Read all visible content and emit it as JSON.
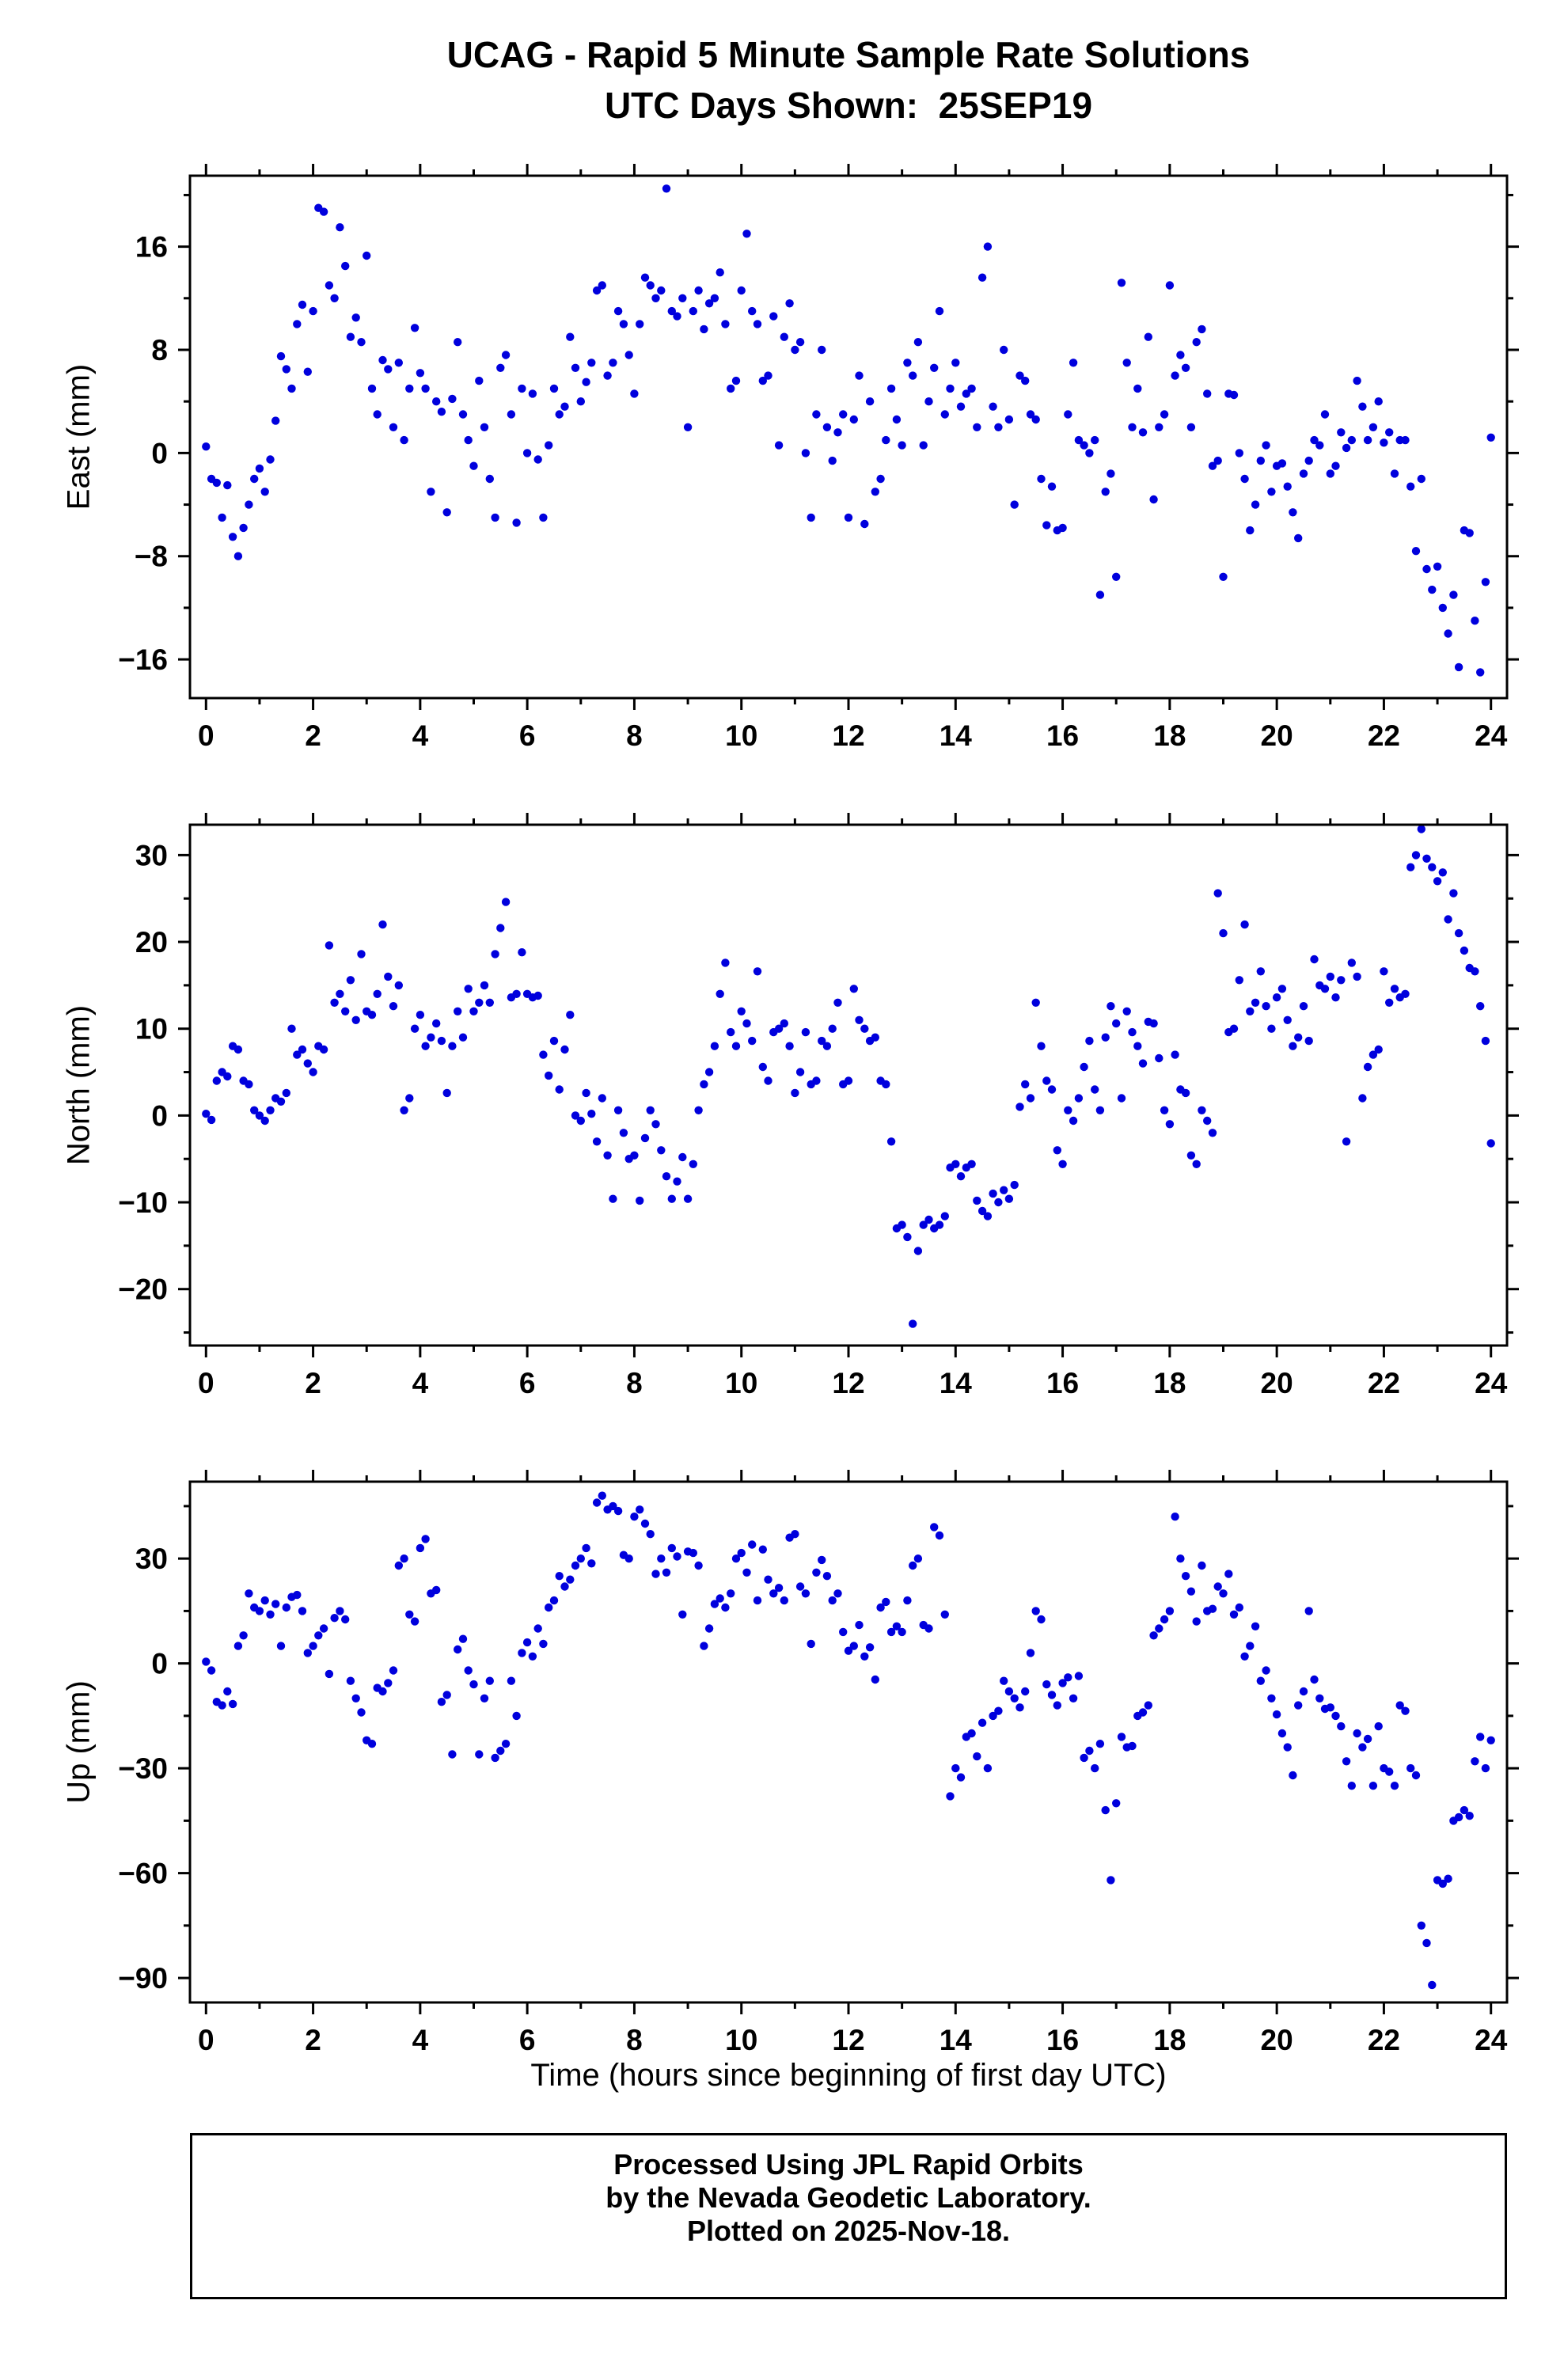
{
  "title": {
    "line1": "UCAG - Rapid 5 Minute Sample Rate Solutions",
    "line2": "UTC Days Shown:  25SEP19"
  },
  "xlabel": "Time (hours since beginning of first day UTC)",
  "footer": {
    "line1": "Processed Using JPL Rapid Orbits",
    "line2": "by the Nevada Geodetic Laboratory.",
    "line3": "Plotted on 2025-Nov-18."
  },
  "colors": {
    "point": "#0000dd",
    "frame": "#000000"
  },
  "chart_data": [
    {
      "type": "scatter",
      "name": "east",
      "title": "",
      "ylabel": "East (mm)",
      "xlabel": "",
      "xlim": [
        -0.3,
        24.3
      ],
      "ylim": [
        -19,
        21.5
      ],
      "xticks": {
        "major": [
          0,
          2,
          4,
          6,
          8,
          10,
          12,
          14,
          16,
          18,
          20,
          22,
          24
        ],
        "minor": [
          1,
          3,
          5,
          7,
          9,
          11,
          13,
          15,
          17,
          19,
          21,
          23
        ]
      },
      "yticks": {
        "major": [
          -16,
          -8,
          0,
          8,
          16
        ],
        "minor": [
          -12,
          -4,
          4,
          12,
          20
        ]
      },
      "x_start": 0,
      "x_step": 0.1,
      "y": [
        0.5,
        -2,
        -2.3,
        -5,
        -2.5,
        -6.5,
        -8,
        -5.8,
        -4,
        -2,
        -1.2,
        -3,
        -0.5,
        2.5,
        7.5,
        6.5,
        5,
        10,
        11.5,
        6.3,
        11,
        19,
        18.7,
        13,
        12,
        17.5,
        14.5,
        9,
        10.5,
        8.6,
        15.3,
        5,
        3,
        7.2,
        6.5,
        2,
        7,
        1,
        5,
        9.7,
        6.2,
        5,
        -3,
        4,
        3.2,
        -4.6,
        4.2,
        8.6,
        3,
        1,
        -1,
        5.6,
        2,
        -2,
        -5,
        6.6,
        7.6,
        3,
        -5.4,
        5,
        0,
        4.6,
        -0.5,
        -5,
        0.6,
        5,
        3,
        3.6,
        9,
        6.6,
        4,
        5.5,
        7,
        12.6,
        13,
        6,
        7,
        11,
        10,
        7.6,
        4.6,
        10,
        13.6,
        13,
        12,
        12.6,
        20.5,
        11,
        10.6,
        12,
        2,
        11,
        12.6,
        9.6,
        11.6,
        12,
        14,
        10,
        5,
        5.6,
        12.6,
        17,
        11,
        10,
        5.6,
        6,
        10.6,
        0.6,
        9,
        11.6,
        8,
        8.6,
        0,
        -5,
        3,
        8,
        2,
        -0.6,
        1.6,
        3,
        -5,
        2.6,
        6,
        -5.5,
        4,
        -3,
        -2,
        1,
        5,
        2.6,
        0.6,
        7,
        6,
        8.6,
        0.6,
        4,
        6.6,
        11,
        3,
        5,
        7,
        3.6,
        4.6,
        5,
        2,
        13.6,
        16,
        3.6,
        2,
        8,
        2.6,
        -4,
        6,
        5.6,
        3,
        2.6,
        -2,
        -5.6,
        -2.6,
        -6,
        -5.8,
        3,
        7,
        1,
        0.6,
        0,
        1,
        -11,
        -3,
        -1.6,
        -9.6,
        13.2,
        7,
        2,
        5,
        1.6,
        9,
        -3.6,
        2,
        3,
        13,
        6,
        7.6,
        6.6,
        2,
        8.6,
        9.6,
        4.6,
        -1,
        -0.6,
        -9.6,
        4.6,
        4.5,
        0,
        -2,
        -6,
        -4,
        -0.6,
        0.6,
        -3,
        -1,
        -0.8,
        -2.6,
        -4.6,
        -6.6,
        -1.6,
        -0.6,
        1,
        0.6,
        3,
        -1.6,
        -1,
        1.6,
        0.4,
        1,
        5.6,
        3.6,
        1,
        2,
        4,
        0.8,
        1.6,
        -1.6,
        1,
        1,
        -2.6,
        -7.6,
        -2,
        -9,
        -10.6,
        -8.8,
        -12,
        -14,
        -11,
        -16.6,
        -6,
        -6.2,
        -13,
        -17,
        -10,
        1.2
      ]
    },
    {
      "type": "scatter",
      "name": "north",
      "title": "",
      "ylabel": "North (mm)",
      "xlabel": "",
      "xlim": [
        -0.3,
        24.3
      ],
      "ylim": [
        -26.5,
        33.5
      ],
      "xticks": {
        "major": [
          0,
          2,
          4,
          6,
          8,
          10,
          12,
          14,
          16,
          18,
          20,
          22,
          24
        ],
        "minor": [
          1,
          3,
          5,
          7,
          9,
          11,
          13,
          15,
          17,
          19,
          21,
          23
        ]
      },
      "yticks": {
        "major": [
          -20,
          -10,
          0,
          10,
          20,
          30
        ],
        "minor": [
          -25,
          -15,
          -5,
          5,
          15,
          25
        ]
      },
      "x_start": 0,
      "x_step": 0.1,
      "y": [
        0.2,
        -0.5,
        4,
        5,
        4.5,
        8,
        7.6,
        4,
        3.6,
        0.6,
        0,
        -0.6,
        0.6,
        2,
        1.6,
        2.6,
        10,
        7,
        7.6,
        6,
        5,
        8,
        7.6,
        19.6,
        13,
        14,
        12,
        15.6,
        11,
        18.6,
        12,
        11.6,
        14,
        22,
        16,
        12.6,
        15,
        0.6,
        2,
        10,
        11.6,
        8,
        9,
        10.6,
        8.6,
        2.6,
        8,
        12,
        9,
        14.6,
        12,
        13,
        15,
        13,
        18.6,
        21.6,
        24.6,
        13.6,
        14,
        18.8,
        14,
        13.6,
        13.8,
        7,
        4.6,
        8.6,
        3,
        7.6,
        11.6,
        0,
        -0.6,
        2.6,
        0.2,
        -3,
        2,
        -4.6,
        -9.6,
        0.6,
        -2,
        -5,
        -4.6,
        -9.8,
        -2.6,
        0.6,
        -1,
        -4,
        -7,
        -9.6,
        -7.6,
        -4.8,
        -9.6,
        -5.6,
        0.6,
        3.6,
        5,
        8,
        14,
        17.6,
        9.6,
        8,
        12,
        10.6,
        8.6,
        16.6,
        5.6,
        4,
        9.6,
        10,
        10.6,
        8,
        2.6,
        5,
        9.6,
        3.6,
        4,
        8.6,
        8,
        10,
        13,
        3.6,
        4,
        14.6,
        11,
        10,
        8.6,
        9,
        4,
        3.6,
        -3,
        -13,
        -12.6,
        -14,
        -24,
        -15.6,
        -12.6,
        -12,
        -13,
        -12.6,
        -11.6,
        -6,
        -5.6,
        -7,
        -6,
        -5.6,
        -9.8,
        -11,
        -11.6,
        -9,
        -10,
        -8.6,
        -9.6,
        -8,
        1,
        3.6,
        2,
        13,
        8,
        4,
        3,
        -4,
        -5.6,
        0.6,
        -0.6,
        2,
        5.6,
        8.6,
        3,
        0.6,
        9,
        12.6,
        10.6,
        2,
        12,
        9.6,
        8,
        6,
        10.8,
        10.6,
        6.6,
        0.6,
        -1,
        7,
        3,
        2.6,
        -4.6,
        -5.6,
        0.6,
        -0.6,
        -2,
        25.6,
        21,
        9.6,
        10,
        15.6,
        22,
        12,
        13,
        16.6,
        12.6,
        10,
        13.6,
        14.6,
        11,
        8,
        9,
        12.6,
        8.6,
        18,
        15,
        14.6,
        16,
        13.6,
        15.6,
        -3,
        17.6,
        16,
        2,
        5.6,
        7,
        7.6,
        16.6,
        13,
        14.6,
        13.6,
        14,
        28.6,
        30,
        33,
        29.6,
        28.6,
        27,
        28,
        22.6,
        25.6,
        21,
        19,
        17,
        16.6,
        12.6,
        8.6,
        -3.2
      ]
    },
    {
      "type": "scatter",
      "name": "up",
      "title": "",
      "ylabel": "Up (mm)",
      "xlabel": "Time (hours since beginning of first day UTC)",
      "xlim": [
        -0.3,
        24.3
      ],
      "ylim": [
        -97,
        52
      ],
      "xticks": {
        "major": [
          0,
          2,
          4,
          6,
          8,
          10,
          12,
          14,
          16,
          18,
          20,
          22,
          24
        ],
        "minor": [
          1,
          3,
          5,
          7,
          9,
          11,
          13,
          15,
          17,
          19,
          21,
          23
        ]
      },
      "yticks": {
        "major": [
          -90,
          -60,
          -30,
          0,
          30
        ],
        "minor": [
          -75,
          -45,
          -15,
          15,
          45
        ]
      },
      "x_start": 0,
      "x_step": 0.1,
      "y": [
        0.5,
        -2,
        -11,
        -12,
        -8,
        -11.6,
        5,
        8,
        20,
        16,
        15,
        18,
        14,
        17,
        5,
        16,
        19,
        19.6,
        15,
        3,
        5,
        8,
        10,
        -3,
        13,
        15,
        12.6,
        -5,
        -10,
        -14,
        -22,
        -23,
        -7,
        -8,
        -5.6,
        -2,
        28,
        30,
        14,
        12,
        33,
        35.6,
        20,
        21,
        -11,
        -9,
        -26,
        4,
        7,
        -2,
        -6,
        -26,
        -10,
        -5,
        -27,
        -25,
        -23,
        -5,
        -15,
        3,
        6,
        2,
        10,
        5.6,
        16,
        18,
        25,
        22,
        24,
        28,
        30,
        33,
        28.6,
        46,
        48,
        44,
        45,
        43.6,
        31,
        30,
        42,
        44,
        40,
        37,
        25.6,
        30,
        26,
        33,
        30.6,
        14,
        32,
        31.6,
        28,
        5,
        10,
        17,
        18.6,
        16,
        20,
        30,
        31.6,
        26,
        34,
        18,
        32.6,
        24,
        20,
        21.6,
        18,
        36,
        37,
        22,
        20,
        5.6,
        26,
        29.6,
        25,
        18,
        20,
        9,
        3.6,
        5,
        11,
        2,
        4.6,
        -4.6,
        16,
        17.6,
        9,
        10.6,
        9,
        18,
        28,
        30,
        11,
        10,
        39,
        36.6,
        14,
        -38,
        -30,
        -32.6,
        -21,
        -20,
        -26.6,
        -17,
        -30,
        -15,
        -13.6,
        -5,
        -8,
        -10,
        -12.6,
        -8,
        3,
        15,
        12.6,
        -6,
        -9,
        -12,
        -5.6,
        -4,
        -10,
        -3.6,
        -27,
        -25,
        -30,
        -23,
        -42,
        -62,
        -40,
        -21,
        -24,
        -23.6,
        -15,
        -14,
        -12,
        8,
        10,
        12.6,
        15,
        42,
        30,
        25,
        20.6,
        12,
        28,
        15,
        15.6,
        22,
        20,
        25.6,
        14,
        16,
        2,
        5,
        10.6,
        -5,
        -2,
        -10,
        -14.6,
        -20,
        -24,
        -32,
        -12,
        -8,
        15,
        -4.6,
        -10,
        -13,
        -12.6,
        -15,
        -18,
        -28,
        -35,
        -20,
        -24,
        -21.6,
        -35,
        -18,
        -30,
        -31,
        -35,
        -12,
        -13.6,
        -30,
        -32,
        -75,
        -80,
        -92,
        -62,
        -63,
        -61.6,
        -45,
        -44,
        -42,
        -43.6,
        -28,
        -21,
        -30,
        -22
      ]
    }
  ]
}
